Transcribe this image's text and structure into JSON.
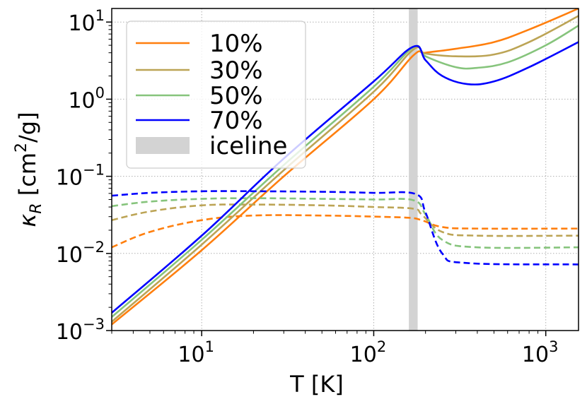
{
  "chart_data": {
    "type": "line",
    "title": "",
    "xlabel": "T [K]",
    "ylabel_prefix": "κ",
    "ylabel_sub": "R",
    "ylabel_unit_open": " [cm",
    "ylabel_unit_sup": "2",
    "ylabel_unit_close": "/g]",
    "xscale": "log",
    "yscale": "log",
    "xlim": [
      3,
      1550
    ],
    "ylim": [
      0.001,
      15
    ],
    "grid": true,
    "legend_position": "top-left",
    "x_ticks": [
      {
        "value": 10,
        "base": "10",
        "exp": "1"
      },
      {
        "value": 100,
        "base": "10",
        "exp": "2"
      },
      {
        "value": 1000,
        "base": "10",
        "exp": "3"
      }
    ],
    "y_ticks": [
      {
        "value": 0.001,
        "base": "10",
        "exp": "−3"
      },
      {
        "value": 0.01,
        "base": "10",
        "exp": "−2"
      },
      {
        "value": 0.1,
        "base": "10",
        "exp": "−1"
      },
      {
        "value": 1,
        "base": "10",
        "exp": "0"
      },
      {
        "value": 10,
        "base": "10",
        "exp": "1"
      }
    ],
    "iceline": {
      "name": "iceline",
      "x_range": [
        160,
        180
      ],
      "color": "#d3d3d3"
    },
    "series": [
      {
        "name": "10%",
        "color": "#ff7f0e",
        "solid": [
          [
            3,
            0.0012
          ],
          [
            10,
            0.011
          ],
          [
            30,
            0.1
          ],
          [
            100,
            1.0
          ],
          [
            170,
            3.7
          ],
          [
            200,
            4.0
          ],
          [
            300,
            4.5
          ],
          [
            500,
            5.5
          ],
          [
            800,
            8.0
          ],
          [
            1550,
            15
          ]
        ],
        "dashed": [
          [
            3,
            0.012
          ],
          [
            5,
            0.019
          ],
          [
            10,
            0.027
          ],
          [
            20,
            0.031
          ],
          [
            50,
            0.031
          ],
          [
            100,
            0.03
          ],
          [
            160,
            0.029
          ],
          [
            190,
            0.027
          ],
          [
            250,
            0.022
          ],
          [
            400,
            0.021
          ],
          [
            1550,
            0.021
          ]
        ]
      },
      {
        "name": "30%",
        "color": "#bca455",
        "solid": [
          [
            3,
            0.0013
          ],
          [
            10,
            0.013
          ],
          [
            30,
            0.12
          ],
          [
            100,
            1.25
          ],
          [
            170,
            4.4
          ],
          [
            200,
            3.9
          ],
          [
            300,
            3.6
          ],
          [
            500,
            3.8
          ],
          [
            800,
            5.5
          ],
          [
            1550,
            12
          ]
        ],
        "dashed": [
          [
            3,
            0.027
          ],
          [
            5,
            0.035
          ],
          [
            10,
            0.042
          ],
          [
            20,
            0.043
          ],
          [
            50,
            0.042
          ],
          [
            100,
            0.04
          ],
          [
            170,
            0.038
          ],
          [
            190,
            0.032
          ],
          [
            250,
            0.019
          ],
          [
            400,
            0.017
          ],
          [
            1550,
            0.017
          ]
        ]
      },
      {
        "name": "50%",
        "color": "#86c47c",
        "solid": [
          [
            3,
            0.0015
          ],
          [
            10,
            0.015
          ],
          [
            30,
            0.14
          ],
          [
            100,
            1.45
          ],
          [
            170,
            4.7
          ],
          [
            200,
            3.6
          ],
          [
            300,
            2.6
          ],
          [
            400,
            2.55
          ],
          [
            600,
            3.0
          ],
          [
            1000,
            5.0
          ],
          [
            1550,
            9.0
          ]
        ],
        "dashed": [
          [
            3,
            0.041
          ],
          [
            5,
            0.047
          ],
          [
            10,
            0.051
          ],
          [
            20,
            0.052
          ],
          [
            50,
            0.051
          ],
          [
            100,
            0.05
          ],
          [
            170,
            0.049
          ],
          [
            200,
            0.032
          ],
          [
            250,
            0.015
          ],
          [
            400,
            0.012
          ],
          [
            1550,
            0.012
          ]
        ]
      },
      {
        "name": "70%",
        "color": "#0000ff",
        "solid": [
          [
            3,
            0.0017
          ],
          [
            10,
            0.017
          ],
          [
            30,
            0.17
          ],
          [
            100,
            1.7
          ],
          [
            170,
            4.8
          ],
          [
            200,
            3.2
          ],
          [
            250,
            2.0
          ],
          [
            350,
            1.57
          ],
          [
            500,
            1.7
          ],
          [
            800,
            2.6
          ],
          [
            1550,
            5.5
          ]
        ],
        "dashed": [
          [
            3,
            0.056
          ],
          [
            5,
            0.061
          ],
          [
            10,
            0.064
          ],
          [
            20,
            0.064
          ],
          [
            50,
            0.063
          ],
          [
            100,
            0.061
          ],
          [
            175,
            0.059
          ],
          [
            200,
            0.034
          ],
          [
            250,
            0.01
          ],
          [
            350,
            0.0075
          ],
          [
            1550,
            0.0072
          ]
        ]
      }
    ]
  }
}
